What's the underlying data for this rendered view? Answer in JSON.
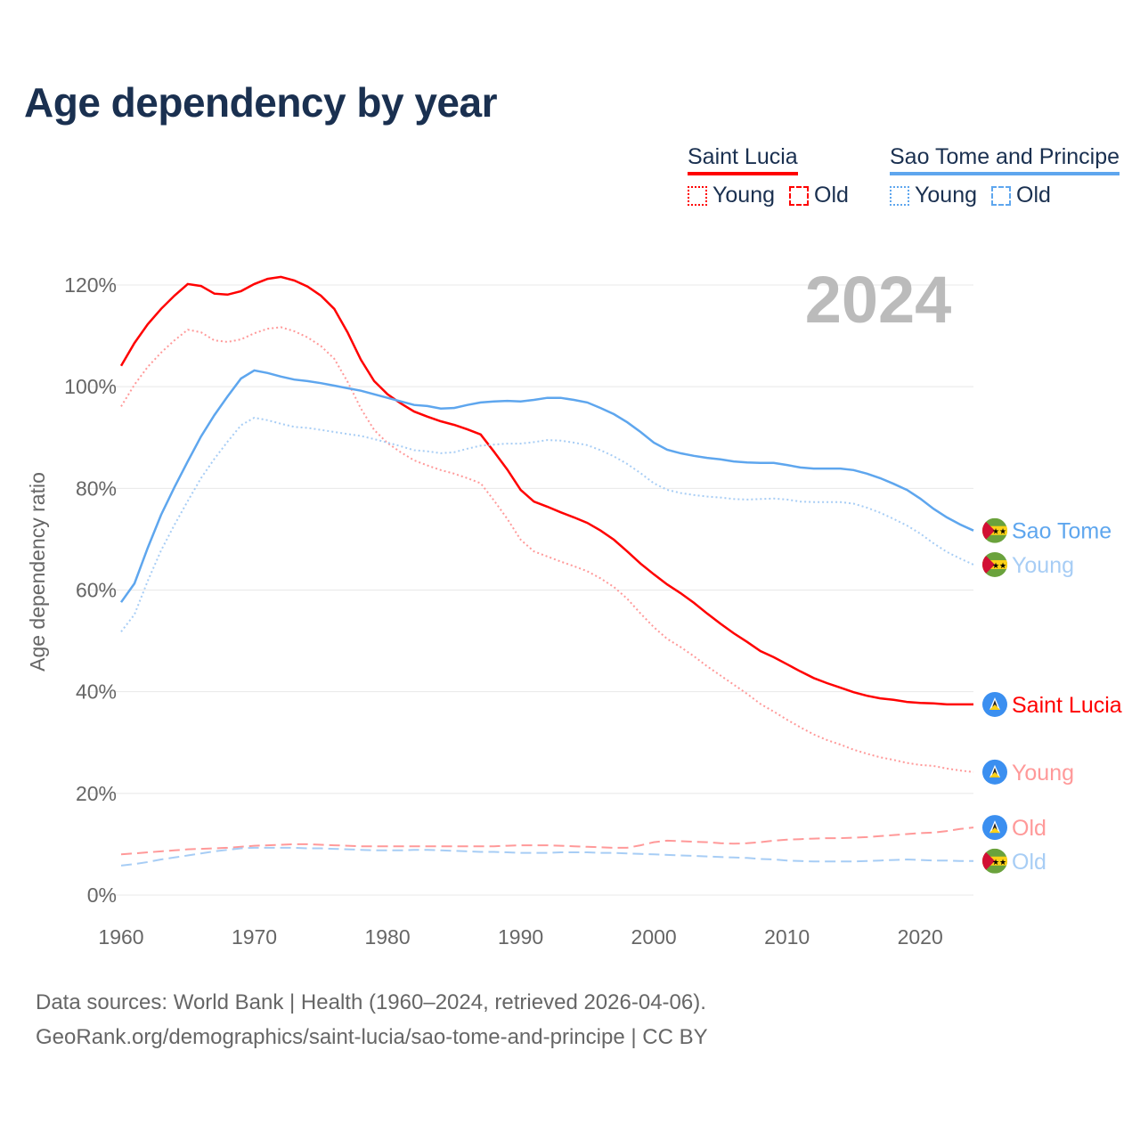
{
  "chart_data": {
    "type": "line",
    "title": "Age dependency by year",
    "ylabel": "Age dependency ratio",
    "xlabel": "",
    "ylim": [
      0,
      120
    ],
    "xlim": [
      1960,
      2024
    ],
    "y_ticks": [
      "0%",
      "20%",
      "40%",
      "60%",
      "80%",
      "100%",
      "120%"
    ],
    "y_tick_values": [
      0,
      20,
      40,
      60,
      80,
      100,
      120
    ],
    "x_ticks": [
      "1960",
      "1970",
      "1980",
      "1990",
      "2000",
      "2010",
      "2020"
    ],
    "x_tick_values": [
      1960,
      1970,
      1980,
      1990,
      2000,
      2010,
      2020
    ],
    "grid": true,
    "year_watermark": "2024",
    "x_start": 1960,
    "legend": {
      "placement": "top-right",
      "groups": [
        {
          "name": "Saint Lucia",
          "color": "#ff0000",
          "items": [
            {
              "label": "Young",
              "style": "dotted"
            },
            {
              "label": "Old",
              "style": "dashed"
            }
          ]
        },
        {
          "name": "Sao Tome and Principe",
          "color": "#5ea6ee",
          "items": [
            {
              "label": "Young",
              "style": "dotted"
            },
            {
              "label": "Old",
              "style": "dashed"
            }
          ]
        }
      ]
    },
    "series": [
      {
        "name": "Saint Lucia",
        "end_label": "Saint Lucia",
        "country": "lc",
        "color": "#ff0000",
        "style": "solid",
        "values": [
          104.1,
          108.6,
          112.3,
          115.3,
          117.9,
          120.2,
          119.8,
          118.3,
          118.1,
          118.8,
          120.2,
          121.2,
          121.6,
          120.9,
          119.7,
          117.9,
          115.3,
          110.7,
          105.3,
          101.1,
          98.5,
          96.7,
          95.1,
          94.1,
          93.2,
          92.5,
          91.6,
          90.6,
          87.2,
          83.7,
          79.7,
          77.4,
          76.4,
          75.3,
          74.3,
          73.2,
          71.7,
          69.9,
          67.6,
          65.2,
          63.1,
          61.1,
          59.4,
          57.5,
          55.4,
          53.4,
          51.5,
          49.8,
          48.0,
          46.8,
          45.4,
          44.0,
          42.7,
          41.7,
          40.8,
          39.9,
          39.2,
          38.7,
          38.4,
          38.0,
          37.8,
          37.7,
          37.5,
          37.5,
          37.5
        ]
      },
      {
        "name": "Saint Lucia Young",
        "end_label": "Young",
        "country": "lc",
        "color": "#ff9999",
        "style": "dotted",
        "values": [
          96.1,
          100.4,
          103.9,
          106.7,
          109.1,
          111.2,
          110.7,
          109.1,
          108.8,
          109.3,
          110.5,
          111.4,
          111.7,
          110.9,
          109.7,
          108.0,
          105.5,
          101.0,
          95.7,
          91.5,
          88.9,
          87.1,
          85.5,
          84.5,
          83.6,
          82.9,
          82.0,
          81.0,
          77.6,
          74.0,
          69.9,
          67.6,
          66.6,
          65.6,
          64.7,
          63.7,
          62.3,
          60.6,
          58.3,
          55.4,
          52.7,
          50.4,
          48.8,
          47.0,
          45.0,
          43.2,
          41.4,
          39.6,
          37.6,
          36.1,
          34.5,
          33.0,
          31.6,
          30.5,
          29.6,
          28.6,
          27.8,
          27.1,
          26.6,
          26.0,
          25.6,
          25.4,
          24.9,
          24.5,
          24.2
        ]
      },
      {
        "name": "Saint Lucia Old",
        "end_label": "Old",
        "country": "lc",
        "color": "#ff9999",
        "style": "dashed",
        "values": [
          8.0,
          8.2,
          8.4,
          8.6,
          8.8,
          9.0,
          9.1,
          9.2,
          9.3,
          9.5,
          9.7,
          9.8,
          9.9,
          10.0,
          10.0,
          9.9,
          9.8,
          9.7,
          9.6,
          9.6,
          9.6,
          9.6,
          9.6,
          9.6,
          9.6,
          9.6,
          9.6,
          9.6,
          9.6,
          9.7,
          9.8,
          9.8,
          9.8,
          9.7,
          9.6,
          9.5,
          9.4,
          9.3,
          9.3,
          9.8,
          10.4,
          10.7,
          10.6,
          10.5,
          10.4,
          10.2,
          10.1,
          10.2,
          10.4,
          10.7,
          10.9,
          11.0,
          11.1,
          11.2,
          11.2,
          11.3,
          11.4,
          11.6,
          11.8,
          12.0,
          12.2,
          12.3,
          12.6,
          13.0,
          13.3
        ]
      },
      {
        "name": "Sao Tome and Principe",
        "end_label": "Sao Tome",
        "country": "st",
        "color": "#5ea6ee",
        "style": "solid",
        "values": [
          57.6,
          61.3,
          68.3,
          74.8,
          80.2,
          85.3,
          90.2,
          94.4,
          98.1,
          101.6,
          103.2,
          102.7,
          102.0,
          101.4,
          101.1,
          100.7,
          100.2,
          99.7,
          99.2,
          98.5,
          97.8,
          97.1,
          96.4,
          96.2,
          95.7,
          95.8,
          96.4,
          96.9,
          97.1,
          97.2,
          97.1,
          97.4,
          97.8,
          97.8,
          97.4,
          96.9,
          95.8,
          94.6,
          93.0,
          91.1,
          89.0,
          87.6,
          86.9,
          86.4,
          86.0,
          85.7,
          85.3,
          85.1,
          85.0,
          85.0,
          84.6,
          84.1,
          83.9,
          83.9,
          83.9,
          83.6,
          82.9,
          82.0,
          80.9,
          79.7,
          78.0,
          76.0,
          74.3,
          72.9,
          71.7
        ]
      },
      {
        "name": "Sao Tome and Principe Young",
        "end_label": "Young",
        "country": "st",
        "color": "#a7cdf5",
        "style": "dotted",
        "values": [
          51.8,
          55.2,
          61.8,
          67.8,
          72.8,
          77.5,
          82.0,
          85.8,
          89.2,
          92.4,
          93.9,
          93.4,
          92.7,
          92.1,
          91.9,
          91.5,
          91.1,
          90.7,
          90.3,
          89.7,
          89.0,
          88.3,
          87.5,
          87.3,
          86.9,
          87.1,
          87.8,
          88.4,
          88.6,
          88.8,
          88.8,
          89.1,
          89.5,
          89.4,
          89.0,
          88.5,
          87.5,
          86.3,
          84.8,
          83.0,
          81.0,
          79.7,
          79.1,
          78.7,
          78.4,
          78.2,
          77.9,
          77.8,
          77.9,
          78.0,
          77.8,
          77.4,
          77.3,
          77.3,
          77.3,
          77.0,
          76.2,
          75.2,
          74.0,
          72.7,
          71.1,
          69.2,
          67.5,
          66.2,
          65.0
        ]
      },
      {
        "name": "Sao Tome and Principe Old",
        "end_label": "Old",
        "country": "st",
        "color": "#a7cdf5",
        "style": "dashed",
        "values": [
          5.8,
          6.1,
          6.5,
          7.0,
          7.4,
          7.8,
          8.2,
          8.6,
          8.9,
          9.2,
          9.3,
          9.3,
          9.3,
          9.3,
          9.2,
          9.2,
          9.1,
          9.0,
          8.9,
          8.8,
          8.8,
          8.8,
          8.9,
          8.9,
          8.8,
          8.7,
          8.6,
          8.5,
          8.5,
          8.4,
          8.3,
          8.3,
          8.3,
          8.4,
          8.4,
          8.4,
          8.3,
          8.3,
          8.2,
          8.1,
          8.0,
          7.9,
          7.8,
          7.7,
          7.6,
          7.5,
          7.4,
          7.3,
          7.1,
          7.0,
          6.8,
          6.7,
          6.6,
          6.6,
          6.6,
          6.6,
          6.7,
          6.8,
          6.9,
          7.0,
          6.9,
          6.8,
          6.8,
          6.7,
          6.7
        ]
      }
    ]
  },
  "footer": {
    "line1": "Data sources: World Bank | Health (1960–2024, retrieved 2026-04-06).",
    "line2": "GeoRank.org/demographics/saint-lucia/sao-tome-and-principe | CC BY"
  }
}
